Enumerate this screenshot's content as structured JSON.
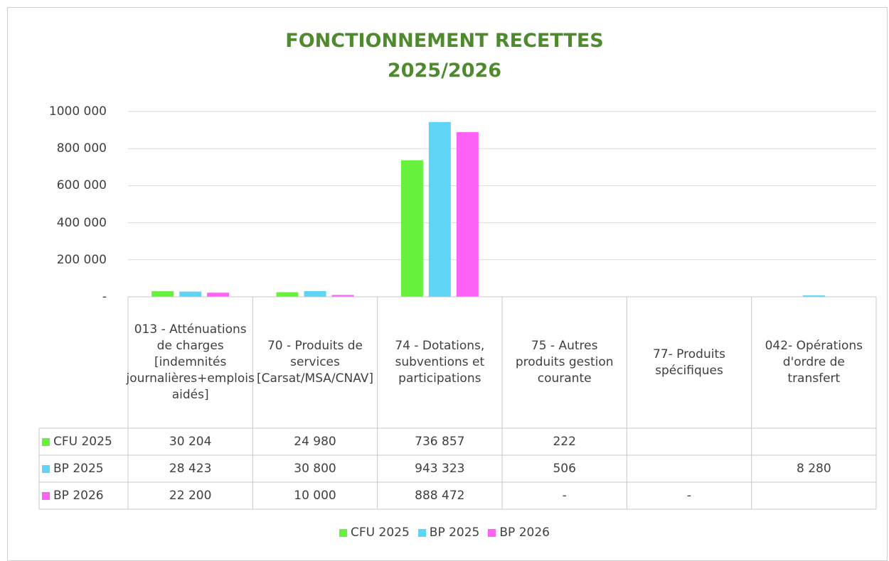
{
  "chart_data": {
    "type": "bar",
    "title": "FONCTIONNEMENT RECETTES",
    "subtitle": "2025/2026",
    "categories": [
      "013 - Atténuations de charges [indemnités journalières+emplois aidés]",
      "70 - Produits de services [Carsat/MSA/CNAV]",
      "74 - Dotations, subventions et participations",
      "75 - Autres produits gestion courante",
      "77- Produits spécifiques",
      "042- Opérations d'ordre de transfert"
    ],
    "series": [
      {
        "name": "CFU 2025",
        "color": "#66f23c",
        "values": [
          30204,
          24980,
          736857,
          222,
          null,
          null
        ],
        "value_labels": [
          "30 204",
          "24 980",
          "736 857",
          "222",
          null,
          null
        ]
      },
      {
        "name": "BP 2025",
        "color": "#5fd5f5",
        "values": [
          28423,
          30800,
          943323,
          506,
          null,
          8280
        ],
        "value_labels": [
          "28 423",
          "30 800",
          "943 323",
          "506",
          null,
          "8 280"
        ]
      },
      {
        "name": "BP 2026",
        "color": "#fd62f7",
        "values": [
          22200,
          10000,
          888472,
          0,
          0,
          null
        ],
        "value_labels": [
          "22 200",
          "10 000",
          "888 472",
          "-",
          "-",
          null
        ]
      }
    ],
    "ylim": [
      0,
      1000000
    ],
    "yticks": [
      {
        "value": 0,
        "label": "-"
      },
      {
        "value": 200000,
        "label": "200 000"
      },
      {
        "value": 400000,
        "label": "400 000"
      },
      {
        "value": 600000,
        "label": "600 000"
      },
      {
        "value": 800000,
        "label": "800 000"
      },
      {
        "value": 1000000,
        "label": "1000 000"
      }
    ],
    "grid": true,
    "legend": "bottom"
  }
}
